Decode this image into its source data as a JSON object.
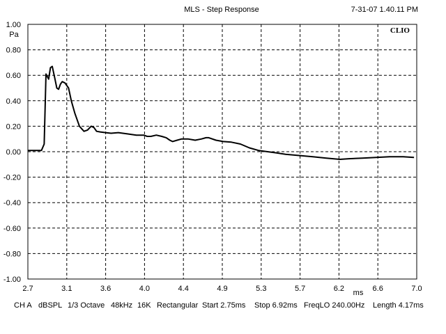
{
  "header": {
    "title": "MLS - Step Response",
    "timestamp": "7-31-07 1.40.11 PM",
    "brand": "CLIO"
  },
  "footer": {
    "items": [
      "CH A",
      "dBSPL",
      "1/3 Octave",
      "48kHz",
      "16K",
      "Rectangular",
      "Start 2.75ms",
      "Stop 6.92ms",
      "FreqLO 240.00Hz",
      "Length 4.17ms"
    ]
  },
  "chart_data": {
    "type": "line",
    "title": "MLS - Step Response",
    "xlabel": "ms",
    "ylabel": "Pa",
    "xlim": [
      2.7,
      7.0
    ],
    "ylim": [
      -1.0,
      1.0
    ],
    "grid": true,
    "xticks": [
      "2.7",
      "3.1",
      "3.6",
      "4.0",
      "4.4",
      "4.9",
      "5.3",
      "5.7",
      "6.2",
      "6.6",
      "7.0"
    ],
    "yticks": [
      "1.00",
      "0.80",
      "0.60",
      "0.40",
      "0.20",
      "0.00",
      "-0.20",
      "-0.40",
      "-0.60",
      "-0.80",
      "-1.00"
    ],
    "series": [
      {
        "x": [
          2.7,
          2.85,
          2.88,
          2.9,
          2.93,
          2.95,
          2.97,
          3.0,
          3.02,
          3.04,
          3.06,
          3.08,
          3.11,
          3.15,
          3.18,
          3.22,
          3.27,
          3.32,
          3.36,
          3.4,
          3.43,
          3.46,
          3.5,
          3.56,
          3.62,
          3.7,
          3.8,
          3.9,
          3.98,
          4.02,
          4.06,
          4.12,
          4.18,
          4.23,
          4.27,
          4.3,
          4.35,
          4.4,
          4.47,
          4.55,
          4.62,
          4.67,
          4.7,
          4.78,
          4.86,
          4.95,
          5.05,
          5.15,
          5.25,
          5.35,
          5.45,
          5.55,
          5.7,
          5.85,
          6.0,
          6.15,
          6.25,
          6.4,
          6.55,
          6.7,
          6.85,
          6.97
        ],
        "y": [
          0.01,
          0.01,
          0.06,
          0.61,
          0.57,
          0.66,
          0.67,
          0.57,
          0.5,
          0.49,
          0.53,
          0.55,
          0.54,
          0.5,
          0.4,
          0.3,
          0.2,
          0.16,
          0.17,
          0.2,
          0.19,
          0.16,
          0.155,
          0.15,
          0.145,
          0.15,
          0.14,
          0.13,
          0.13,
          0.12,
          0.12,
          0.13,
          0.12,
          0.11,
          0.09,
          0.08,
          0.09,
          0.1,
          0.1,
          0.09,
          0.1,
          0.11,
          0.11,
          0.09,
          0.08,
          0.075,
          0.06,
          0.03,
          0.01,
          0.0,
          -0.01,
          -0.02,
          -0.03,
          -0.04,
          -0.05,
          -0.06,
          -0.055,
          -0.05,
          -0.045,
          -0.04,
          -0.04,
          -0.045
        ]
      }
    ]
  }
}
